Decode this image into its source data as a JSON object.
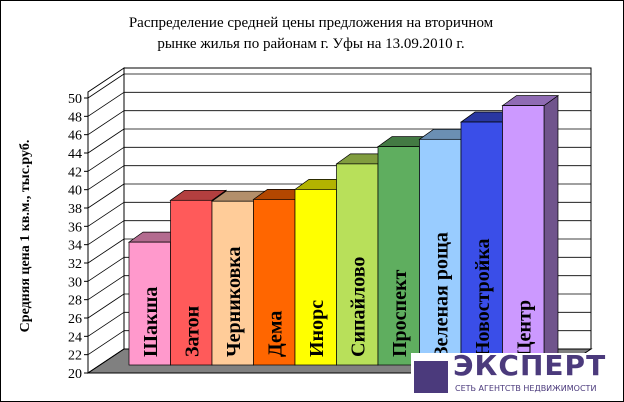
{
  "chart_data": {
    "type": "bar",
    "title": "Распределение средней цены предложения на вторичном рынке жилья по районам г. Уфы на 13.09.2010 г.",
    "title_lines": [
      "Распределение средней цены предложения на вторичном",
      "рынке жилья по районам г. Уфы на 13.09.2010 г."
    ],
    "ylabel": "Средняя цена 1 кв.м., тыс.руб.",
    "xlabel": "",
    "ylim": [
      20,
      50
    ],
    "yticks": [
      "20",
      "22",
      "24",
      "26",
      "28",
      "30",
      "32",
      "34",
      "36",
      "38",
      "40",
      "42",
      "44",
      "46",
      "48",
      "50"
    ],
    "grid": true,
    "three_d": true,
    "categories": [
      "Шакша",
      "Затон",
      "Черниковка",
      "Дема",
      "Инорс",
      "Сипайлово",
      "Проспект",
      "Зеленая роща",
      "Новостройка",
      "Центр"
    ],
    "values": [
      33.5,
      38.1,
      38.0,
      38.2,
      39.3,
      42.1,
      44.0,
      44.8,
      46.7,
      48.5
    ],
    "colors": [
      "#ff99cc",
      "#ff5a5a",
      "#ffcc99",
      "#ff6600",
      "#ffff00",
      "#b8e05a",
      "#5fae5f",
      "#99ccff",
      "#3a4ee8",
      "#cc99ff"
    ]
  },
  "logo": {
    "name": "ЭКСПЕРТ",
    "tagline": "СЕТЬ АГЕНТСТВ НЕДВИЖИМОСТИ"
  }
}
